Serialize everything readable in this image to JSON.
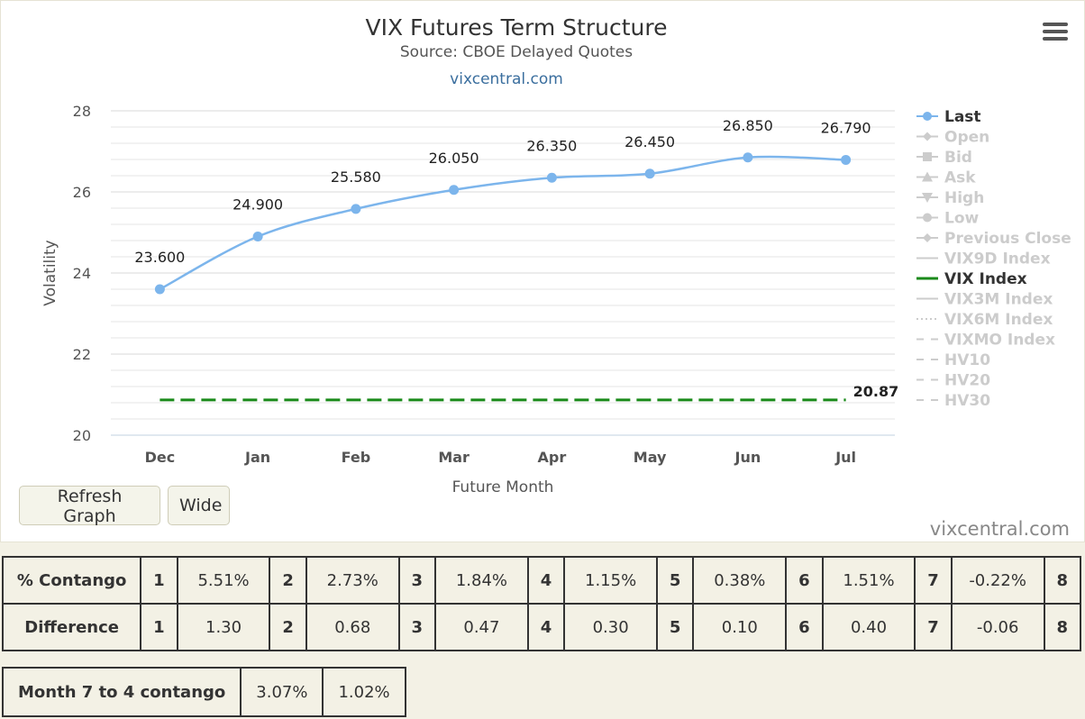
{
  "chart_data": {
    "type": "line",
    "title": "VIX Futures Term Structure",
    "subtitle": "Source: CBOE Delayed Quotes",
    "credit_link": "vixcentral.com",
    "xlabel": "Future Month",
    "ylabel": "Volatility",
    "categories": [
      "Dec",
      "Jan",
      "Feb",
      "Mar",
      "Apr",
      "May",
      "Jun",
      "Jul"
    ],
    "ylim": [
      20,
      28
    ],
    "yticks": [
      20,
      22,
      24,
      26,
      28
    ],
    "grid": true,
    "legend_position": "right",
    "series": [
      {
        "name": "Last",
        "values": [
          23.6,
          24.9,
          25.58,
          26.05,
          26.35,
          26.45,
          26.85,
          26.79
        ],
        "labels": [
          "23.600",
          "24.900",
          "25.580",
          "26.050",
          "26.350",
          "26.450",
          "26.850",
          "26.790"
        ],
        "color": "#7cb5ec",
        "style": "smooth-with-markers"
      },
      {
        "name": "VIX Index",
        "value": 20.87,
        "label": "20.87",
        "color": "#1a8a1a",
        "style": "dashed"
      }
    ],
    "legend": [
      {
        "name": "Last",
        "active": true,
        "symbol": "circle-line"
      },
      {
        "name": "Open",
        "active": false,
        "symbol": "diamond-line"
      },
      {
        "name": "Bid",
        "active": false,
        "symbol": "square-line"
      },
      {
        "name": "Ask",
        "active": false,
        "symbol": "triangle-line"
      },
      {
        "name": "High",
        "active": false,
        "symbol": "triangle-down-line"
      },
      {
        "name": "Low",
        "active": false,
        "symbol": "circle-line"
      },
      {
        "name": "Previous Close",
        "active": false,
        "symbol": "diamond-line"
      },
      {
        "name": "VIX9D Index",
        "active": false,
        "symbol": "line"
      },
      {
        "name": "VIX Index",
        "active": true,
        "symbol": "line",
        "color": "#1a8a1a"
      },
      {
        "name": "VIX3M Index",
        "active": false,
        "symbol": "line"
      },
      {
        "name": "VIX6M Index",
        "active": false,
        "symbol": "dotted"
      },
      {
        "name": "VIXMO Index",
        "active": false,
        "symbol": "dashed"
      },
      {
        "name": "HV10",
        "active": false,
        "symbol": "dashed"
      },
      {
        "name": "HV20",
        "active": false,
        "symbol": "dashed"
      },
      {
        "name": "HV30",
        "active": false,
        "symbol": "dashed"
      }
    ]
  },
  "controls": {
    "refresh_label": "Refresh Graph",
    "wide_label": "Wide",
    "watermark": "vixcentral.com",
    "menu_icon": "hamburger-menu-icon"
  },
  "contango_table": {
    "rows": [
      {
        "label": "% Contango",
        "cells": [
          [
            "1",
            "5.51%"
          ],
          [
            "2",
            "2.73%"
          ],
          [
            "3",
            "1.84%"
          ],
          [
            "4",
            "1.15%"
          ],
          [
            "5",
            "0.38%"
          ],
          [
            "6",
            "1.51%"
          ],
          [
            "7",
            "-0.22%"
          ],
          [
            "8",
            ""
          ]
        ]
      },
      {
        "label": "Difference",
        "cells": [
          [
            "1",
            "1.30"
          ],
          [
            "2",
            "0.68"
          ],
          [
            "3",
            "0.47"
          ],
          [
            "4",
            "0.30"
          ],
          [
            "5",
            "0.10"
          ],
          [
            "6",
            "0.40"
          ],
          [
            "7",
            "-0.06"
          ],
          [
            "8",
            ""
          ]
        ]
      }
    ]
  },
  "month_table": {
    "label": "Month 7 to 4 contango",
    "values": [
      "3.07%",
      "1.02%"
    ]
  }
}
